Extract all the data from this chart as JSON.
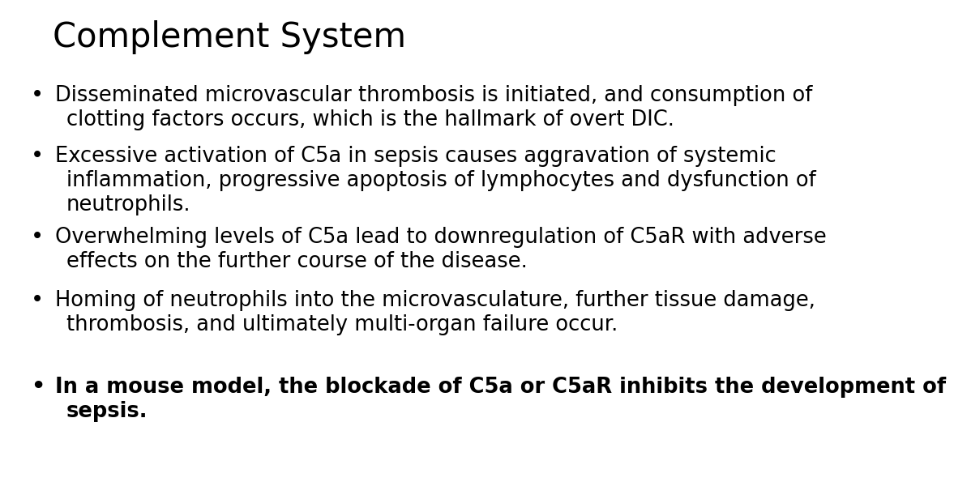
{
  "title": "Complement System",
  "background_color": "#ffffff",
  "text_color": "#000000",
  "title_fontsize": 30,
  "body_fontsize": 18.5,
  "bullet_char": "•",
  "items": [
    {
      "bold": false,
      "text": "Disseminated microvascular thrombosis is initiated, and consumption of\nclotting factors occurs, which is the hallmark of overt DIC."
    },
    {
      "bold": false,
      "text": "Excessive activation of C5a in sepsis causes aggravation of systemic\ninflammation, progressive apoptosis of lymphocytes and dysfunction of\nneutrophils."
    },
    {
      "bold": false,
      "text": "Overwhelming levels of C5a lead to downregulation of C5aR with adverse\neffects on the further course of the disease."
    },
    {
      "bold": false,
      "text": "Homing of neutrophils into the microvasculature, further tissue damage,\nthrombosis, and ultimately multi-organ failure occur."
    },
    {
      "bold": true,
      "text": "In a mouse model, the blockade of C5a or C5aR inhibits the development of\nsepsis."
    }
  ]
}
